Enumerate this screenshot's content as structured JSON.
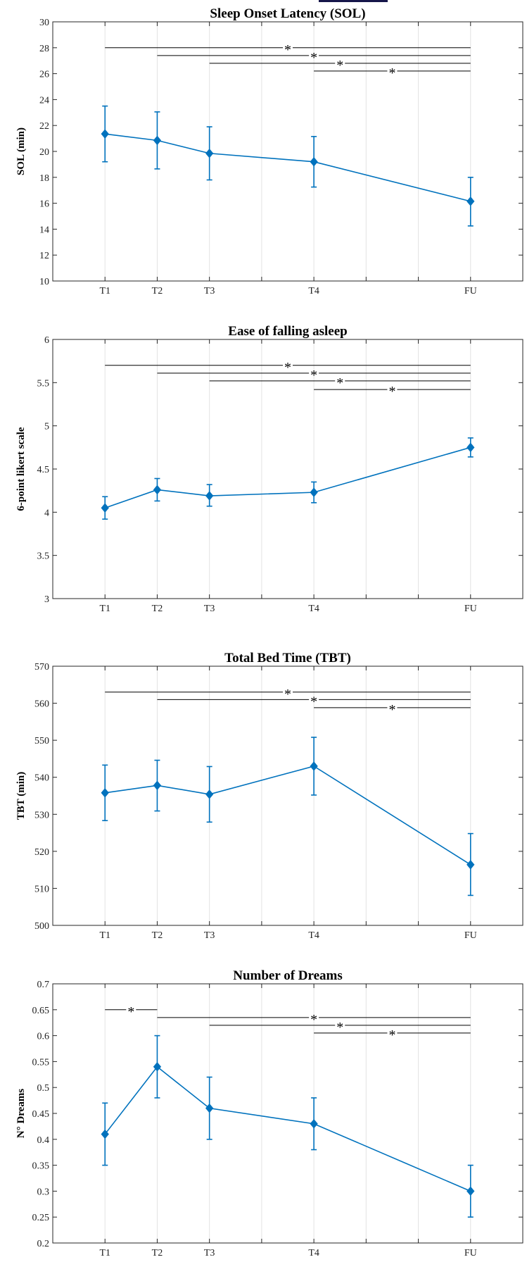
{
  "chart_data": [
    {
      "type": "line",
      "title": "Sleep Onset Latency (SOL)",
      "ylabel": "SOL (min)",
      "categories": [
        "T1",
        "T2",
        "T3",
        "T4",
        "FU"
      ],
      "x": [
        1,
        2,
        3,
        5,
        8
      ],
      "xlim": [
        0,
        9
      ],
      "ylim": [
        10,
        30
      ],
      "yticks": [
        10,
        12,
        14,
        16,
        18,
        20,
        22,
        24,
        26,
        28,
        30
      ],
      "ytick_labels": [
        "10",
        "12",
        "14",
        "16",
        "18",
        "20",
        "22",
        "24",
        "26",
        "28",
        "30"
      ],
      "grid": "vertical",
      "color": "#0072BD",
      "series": [
        {
          "values": [
            21.35,
            20.85,
            19.85,
            19.2,
            16.15
          ],
          "err_low": [
            19.2,
            18.65,
            17.8,
            17.25,
            14.25
          ],
          "err_high": [
            23.5,
            23.05,
            21.9,
            21.15,
            18.0
          ]
        }
      ],
      "significance": [
        {
          "from": "T1",
          "to": "FU",
          "y": 28.0,
          "label": "*"
        },
        {
          "from": "T2",
          "to": "FU",
          "y": 27.4,
          "label": "*"
        },
        {
          "from": "T3",
          "to": "FU",
          "y": 26.8,
          "label": "*"
        },
        {
          "from": "T4",
          "to": "FU",
          "y": 26.2,
          "label": "*"
        }
      ]
    },
    {
      "type": "line",
      "title": "Ease of falling asleep",
      "ylabel": "6-point likert scale",
      "categories": [
        "T1",
        "T2",
        "T3",
        "T4",
        "FU"
      ],
      "x": [
        1,
        2,
        3,
        5,
        8
      ],
      "xlim": [
        0,
        9
      ],
      "ylim": [
        3,
        6
      ],
      "yticks": [
        3,
        3.5,
        4,
        4.5,
        5,
        5.5,
        6
      ],
      "ytick_labels": [
        "3",
        "3.5",
        "4",
        "4.5",
        "5",
        "5.5",
        "6"
      ],
      "grid": "vertical",
      "color": "#0072BD",
      "series": [
        {
          "values": [
            4.05,
            4.26,
            4.19,
            4.23,
            4.75
          ],
          "err_low": [
            3.92,
            4.13,
            4.07,
            4.11,
            4.64
          ],
          "err_high": [
            4.18,
            4.39,
            4.32,
            4.35,
            4.86
          ]
        }
      ],
      "significance": [
        {
          "from": "T1",
          "to": "FU",
          "y": 5.7,
          "label": "*"
        },
        {
          "from": "T2",
          "to": "FU",
          "y": 5.61,
          "label": "*"
        },
        {
          "from": "T3",
          "to": "FU",
          "y": 5.52,
          "label": "*"
        },
        {
          "from": "T4",
          "to": "FU",
          "y": 5.42,
          "label": "*"
        }
      ]
    },
    {
      "type": "line",
      "title": "Total Bed Time (TBT)",
      "ylabel": "TBT (min)",
      "categories": [
        "T1",
        "T2",
        "T3",
        "T4",
        "FU"
      ],
      "x": [
        1,
        2,
        3,
        5,
        8
      ],
      "xlim": [
        0,
        9
      ],
      "ylim": [
        500,
        570
      ],
      "yticks": [
        500,
        510,
        520,
        530,
        540,
        550,
        560,
        570
      ],
      "ytick_labels": [
        "500",
        "510",
        "520",
        "530",
        "540",
        "550",
        "560",
        "570"
      ],
      "grid": "vertical",
      "color": "#0072BD",
      "series": [
        {
          "values": [
            535.8,
            537.8,
            535.4,
            543.0,
            516.4
          ],
          "err_low": [
            528.3,
            530.9,
            527.9,
            535.2,
            508.1
          ],
          "err_high": [
            543.3,
            544.6,
            542.9,
            550.8,
            524.8
          ]
        }
      ],
      "significance": [
        {
          "from": "T1",
          "to": "FU",
          "y": 563.0,
          "label": "*"
        },
        {
          "from": "T2",
          "to": "FU",
          "y": 561.0,
          "label": "*"
        },
        {
          "from": "T4",
          "to": "FU",
          "y": 558.8,
          "label": "*"
        }
      ]
    },
    {
      "type": "line",
      "title": "Number of Dreams",
      "ylabel": "N° Dreams",
      "categories": [
        "T1",
        "T2",
        "T3",
        "T4",
        "FU"
      ],
      "x": [
        1,
        2,
        3,
        5,
        8
      ],
      "xlim": [
        0,
        9
      ],
      "ylim": [
        0.2,
        0.7
      ],
      "yticks": [
        0.2,
        0.25,
        0.3,
        0.35,
        0.4,
        0.45,
        0.5,
        0.55,
        0.6,
        0.65,
        0.7
      ],
      "ytick_labels": [
        "0.2",
        "0.25",
        "0.3",
        "0.35",
        "0.4",
        "0.45",
        "0.5",
        "0.55",
        "0.6",
        "0.65",
        "0.7"
      ],
      "grid": "vertical",
      "color": "#0072BD",
      "series": [
        {
          "values": [
            0.41,
            0.54,
            0.46,
            0.43,
            0.3
          ],
          "err_low": [
            0.35,
            0.48,
            0.4,
            0.38,
            0.25
          ],
          "err_high": [
            0.47,
            0.6,
            0.52,
            0.48,
            0.35
          ]
        }
      ],
      "significance": [
        {
          "from": "T1",
          "to": "T2",
          "y": 0.65,
          "label": "*"
        },
        {
          "from": "T2",
          "to": "FU",
          "y": 0.635,
          "label": "*"
        },
        {
          "from": "T3",
          "to": "FU",
          "y": 0.62,
          "label": "*"
        },
        {
          "from": "T4",
          "to": "FU",
          "y": 0.605,
          "label": "*"
        }
      ]
    }
  ],
  "colors": {
    "series": "#0072BD",
    "axes": "#262626",
    "grid": "#e3e3e3",
    "top_bar": "#16164a"
  }
}
